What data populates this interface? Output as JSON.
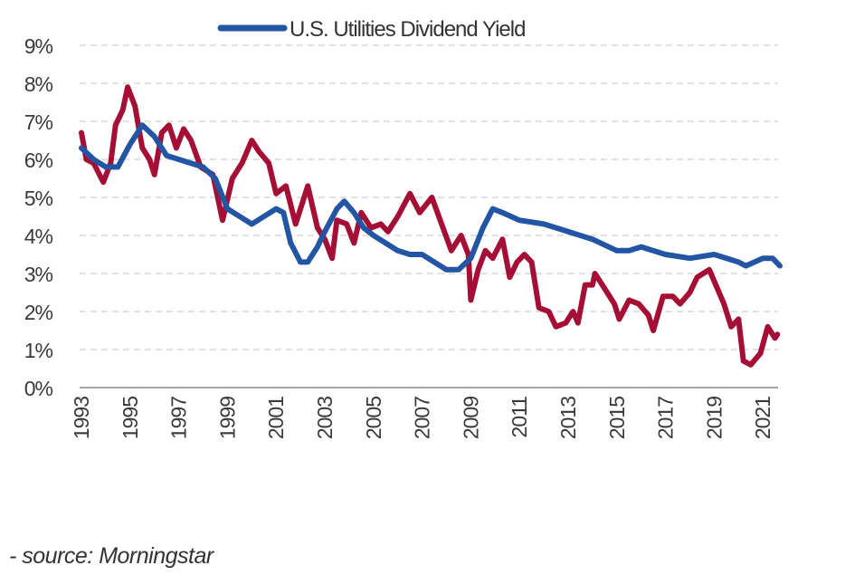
{
  "chart_data": {
    "type": "line",
    "title": "",
    "xlabel": "",
    "ylabel": "",
    "xlim": [
      1993,
      2021.7
    ],
    "ylim": [
      0,
      9
    ],
    "grid": true,
    "legend_placement": "top-center",
    "x_tick_labels": [
      "1993",
      "1995",
      "1997",
      "1999",
      "2001",
      "2003",
      "2005",
      "2007",
      "2009",
      "2011",
      "2013",
      "2015",
      "2017",
      "2019",
      "2021"
    ],
    "y_tick_labels": [
      "0%",
      "1%",
      "2%",
      "3%",
      "4%",
      "5%",
      "6%",
      "7%",
      "8%",
      "9%"
    ],
    "series": [
      {
        "name": "U.S. Utilities Dividend Yield",
        "color": "#2255a4",
        "in_legend": true,
        "points": [
          [
            1993.0,
            6.3
          ],
          [
            1993.5,
            6.0
          ],
          [
            1994.0,
            5.8
          ],
          [
            1994.5,
            5.8
          ],
          [
            1995.0,
            6.4
          ],
          [
            1995.5,
            6.9
          ],
          [
            1996.0,
            6.6
          ],
          [
            1996.5,
            6.1
          ],
          [
            1997.0,
            6.0
          ],
          [
            1997.5,
            5.9
          ],
          [
            1998.0,
            5.8
          ],
          [
            1998.5,
            5.5
          ],
          [
            1999.0,
            4.7
          ],
          [
            1999.5,
            4.5
          ],
          [
            2000.0,
            4.3
          ],
          [
            2000.5,
            4.5
          ],
          [
            2001.0,
            4.7
          ],
          [
            2001.3,
            4.6
          ],
          [
            2001.6,
            3.8
          ],
          [
            2002.0,
            3.3
          ],
          [
            2002.3,
            3.3
          ],
          [
            2002.7,
            3.7
          ],
          [
            2003.0,
            4.1
          ],
          [
            2003.5,
            4.7
          ],
          [
            2003.8,
            4.9
          ],
          [
            2004.2,
            4.6
          ],
          [
            2004.6,
            4.2
          ],
          [
            2005.0,
            4.0
          ],
          [
            2005.5,
            3.8
          ],
          [
            2006.0,
            3.6
          ],
          [
            2006.5,
            3.5
          ],
          [
            2007.0,
            3.5
          ],
          [
            2007.5,
            3.3
          ],
          [
            2008.0,
            3.1
          ],
          [
            2008.5,
            3.1
          ],
          [
            2009.0,
            3.4
          ],
          [
            2009.5,
            4.2
          ],
          [
            2009.9,
            4.7
          ],
          [
            2010.3,
            4.6
          ],
          [
            2011.0,
            4.4
          ],
          [
            2012.0,
            4.3
          ],
          [
            2013.0,
            4.1
          ],
          [
            2014.0,
            3.9
          ],
          [
            2015.0,
            3.6
          ],
          [
            2015.5,
            3.6
          ],
          [
            2016.0,
            3.7
          ],
          [
            2017.0,
            3.5
          ],
          [
            2018.0,
            3.4
          ],
          [
            2019.0,
            3.5
          ],
          [
            2020.0,
            3.3
          ],
          [
            2020.3,
            3.2
          ],
          [
            2021.0,
            3.4
          ],
          [
            2021.4,
            3.4
          ],
          [
            2021.7,
            3.2
          ]
        ]
      },
      {
        "name": "",
        "color": "#a50f36",
        "in_legend": false,
        "points": [
          [
            1993.0,
            6.7
          ],
          [
            1993.2,
            6.0
          ],
          [
            1993.5,
            5.9
          ],
          [
            1993.9,
            5.4
          ],
          [
            1994.2,
            5.9
          ],
          [
            1994.4,
            6.9
          ],
          [
            1994.7,
            7.3
          ],
          [
            1994.9,
            7.9
          ],
          [
            1995.2,
            7.4
          ],
          [
            1995.5,
            6.3
          ],
          [
            1995.8,
            6.0
          ],
          [
            1996.0,
            5.6
          ],
          [
            1996.3,
            6.7
          ],
          [
            1996.6,
            6.9
          ],
          [
            1996.9,
            6.3
          ],
          [
            1997.2,
            6.8
          ],
          [
            1997.5,
            6.5
          ],
          [
            1997.9,
            5.8
          ],
          [
            1998.4,
            5.6
          ],
          [
            1998.8,
            4.4
          ],
          [
            1999.2,
            5.5
          ],
          [
            1999.6,
            5.9
          ],
          [
            2000.0,
            6.5
          ],
          [
            2000.3,
            6.2
          ],
          [
            2000.7,
            5.9
          ],
          [
            2001.0,
            5.1
          ],
          [
            2001.4,
            5.3
          ],
          [
            2001.8,
            4.3
          ],
          [
            2002.3,
            5.3
          ],
          [
            2002.7,
            4.2
          ],
          [
            2003.0,
            3.9
          ],
          [
            2003.3,
            3.4
          ],
          [
            2003.5,
            4.4
          ],
          [
            2003.9,
            4.3
          ],
          [
            2004.2,
            3.8
          ],
          [
            2004.5,
            4.6
          ],
          [
            2004.9,
            4.2
          ],
          [
            2005.3,
            4.3
          ],
          [
            2005.6,
            4.1
          ],
          [
            2006.0,
            4.5
          ],
          [
            2006.5,
            5.1
          ],
          [
            2006.9,
            4.6
          ],
          [
            2007.4,
            5.0
          ],
          [
            2007.8,
            4.3
          ],
          [
            2008.2,
            3.6
          ],
          [
            2008.6,
            4.0
          ],
          [
            2008.9,
            3.5
          ],
          [
            2009.0,
            2.3
          ],
          [
            2009.3,
            3.1
          ],
          [
            2009.6,
            3.6
          ],
          [
            2009.9,
            3.4
          ],
          [
            2010.3,
            3.9
          ],
          [
            2010.6,
            2.9
          ],
          [
            2010.9,
            3.3
          ],
          [
            2011.2,
            3.5
          ],
          [
            2011.5,
            3.3
          ],
          [
            2011.8,
            2.1
          ],
          [
            2012.2,
            2.0
          ],
          [
            2012.5,
            1.6
          ],
          [
            2012.9,
            1.7
          ],
          [
            2013.2,
            2.0
          ],
          [
            2013.4,
            1.7
          ],
          [
            2013.7,
            2.7
          ],
          [
            2014.0,
            2.7
          ],
          [
            2014.1,
            3.0
          ],
          [
            2014.5,
            2.6
          ],
          [
            2014.9,
            2.2
          ],
          [
            2015.1,
            1.8
          ],
          [
            2015.5,
            2.3
          ],
          [
            2015.9,
            2.2
          ],
          [
            2016.3,
            1.9
          ],
          [
            2016.5,
            1.5
          ],
          [
            2016.9,
            2.4
          ],
          [
            2017.3,
            2.4
          ],
          [
            2017.6,
            2.2
          ],
          [
            2018.0,
            2.5
          ],
          [
            2018.3,
            2.9
          ],
          [
            2018.8,
            3.1
          ],
          [
            2019.0,
            2.8
          ],
          [
            2019.4,
            2.2
          ],
          [
            2019.7,
            1.6
          ],
          [
            2020.0,
            1.8
          ],
          [
            2020.2,
            0.7
          ],
          [
            2020.5,
            0.6
          ],
          [
            2020.9,
            0.9
          ],
          [
            2021.2,
            1.6
          ],
          [
            2021.5,
            1.3
          ],
          [
            2021.6,
            1.4
          ]
        ]
      }
    ]
  },
  "source_note": "- source: Morningstar"
}
